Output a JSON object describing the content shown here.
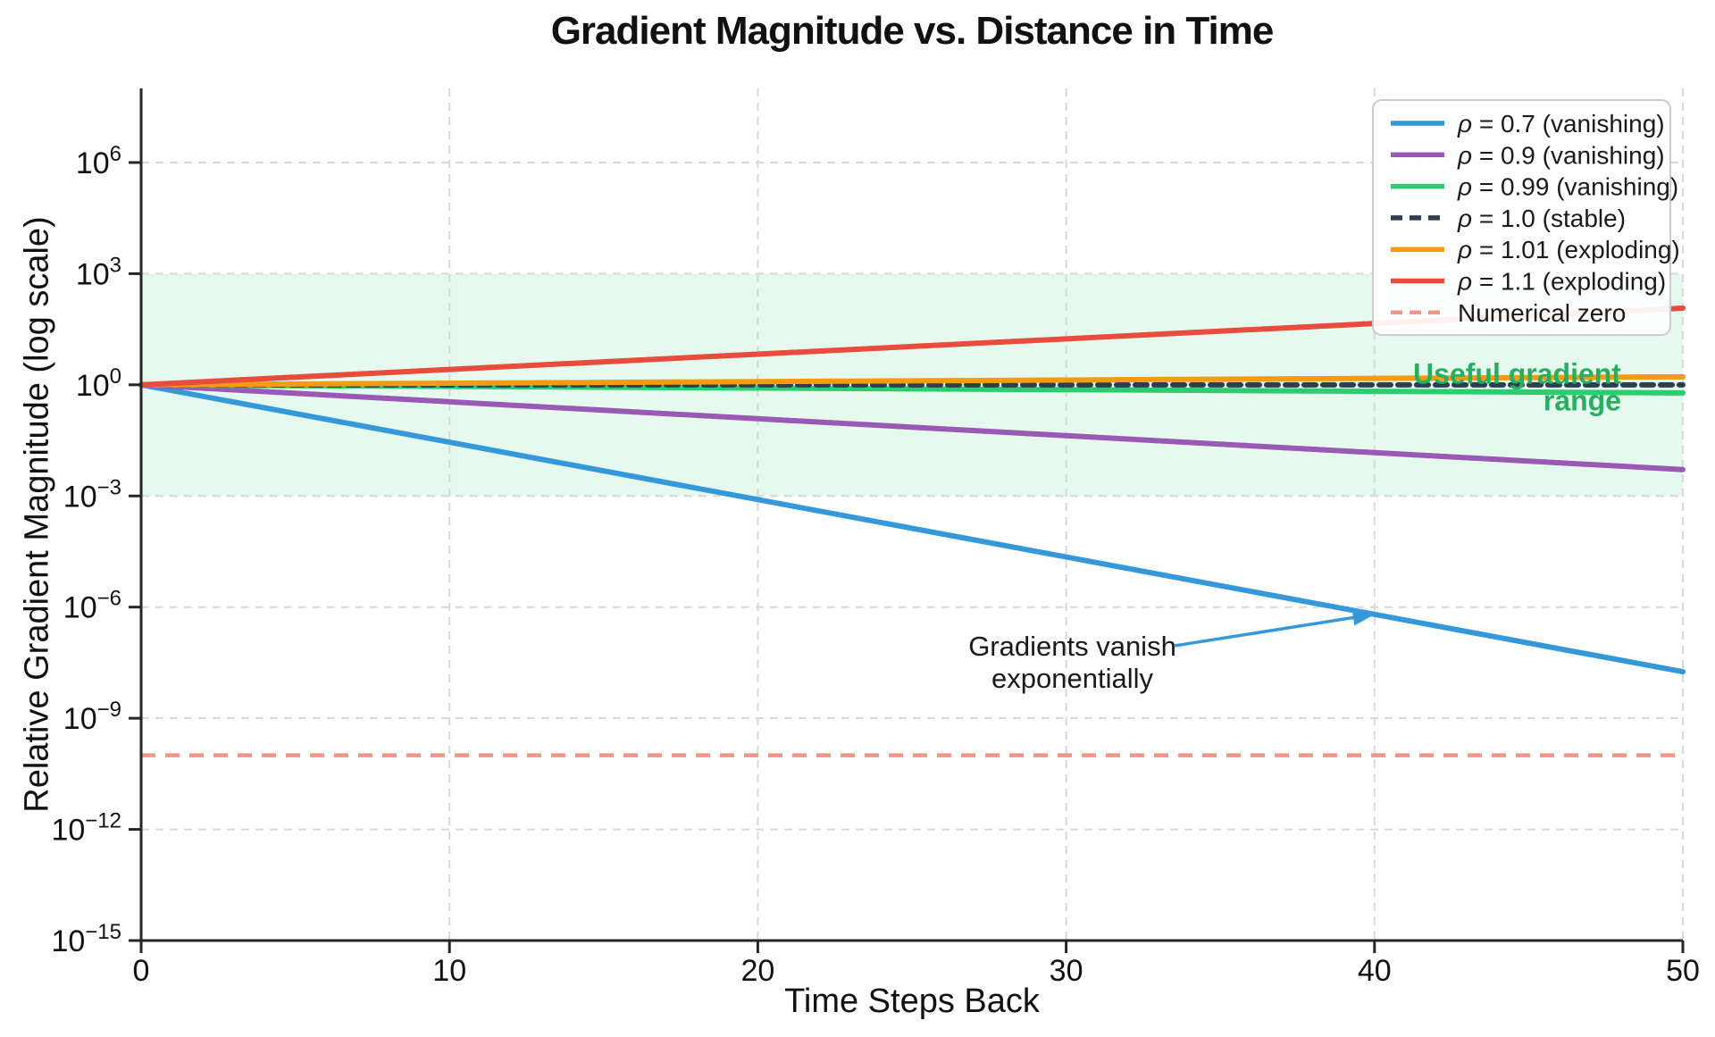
{
  "chart_data": {
    "type": "line",
    "title": "Gradient Magnitude vs. Distance in Time",
    "xlabel": "Time Steps Back",
    "ylabel": "Relative Gradient Magnitude (log scale)",
    "x": [
      0,
      10,
      20,
      30,
      40,
      50
    ],
    "x_ticks": [
      0,
      10,
      20,
      30,
      40,
      50
    ],
    "xlim": [
      0,
      50
    ],
    "y_scale": "log",
    "y_tick_exponents": [
      6,
      3,
      0,
      -3,
      -6,
      -9,
      -12,
      -15
    ],
    "ylim": [
      1e-15,
      100000000.0
    ],
    "grid": true,
    "grid_color": "#d8d8d8",
    "legend_position": "top-right",
    "series": [
      {
        "name": "ρ = 0.7 (vanishing)",
        "rho": 0.7,
        "color": "#3498db",
        "style": "solid",
        "width": 6,
        "values": [
          1,
          0.028248,
          0.00079792,
          2.2539e-05,
          6.3668e-07,
          1.7985e-08
        ]
      },
      {
        "name": "ρ = 0.9 (vanishing)",
        "rho": 0.9,
        "color": "#9b59b6",
        "style": "solid",
        "width": 6,
        "values": [
          1,
          0.34868,
          0.12158,
          0.042391,
          0.014781,
          0.0051538
        ]
      },
      {
        "name": "ρ = 0.99 (vanishing)",
        "rho": 0.99,
        "color": "#2ecc71",
        "style": "solid",
        "width": 6,
        "values": [
          1,
          0.90438,
          0.81791,
          0.7397,
          0.66897,
          0.60501
        ]
      },
      {
        "name": "ρ = 1.0 (stable)",
        "rho": 1.0,
        "color": "#2c3e50",
        "style": "dashed",
        "width": 6,
        "values": [
          1,
          1,
          1,
          1,
          1,
          1
        ]
      },
      {
        "name": "ρ = 1.01 (exploding)",
        "rho": 1.01,
        "color": "#f39c12",
        "style": "solid",
        "width": 6,
        "values": [
          1,
          1.10462,
          1.22019,
          1.34785,
          1.48886,
          1.64463
        ]
      },
      {
        "name": "ρ = 1.1 (exploding)",
        "rho": 1.1,
        "color": "#e74c3c",
        "style": "solid",
        "width": 6,
        "values": [
          1,
          2.59374,
          6.7275,
          17.4494,
          45.2593,
          117.391
        ]
      }
    ],
    "reference_lines": [
      {
        "name": "Numerical zero",
        "y": 1e-10,
        "color": "#f1948a",
        "style": "dashed",
        "width": 4.5
      }
    ],
    "bands": [
      {
        "name": "Useful gradient range",
        "y_from": 0.001,
        "y_to": 1000,
        "fill": "rgba(46, 204, 113, 0.12)",
        "label_lines": [
          "Useful gradient",
          "range"
        ],
        "label_color": "#27ae60",
        "label_anchor_x": 48,
        "label_y": 2.0
      }
    ],
    "annotations": [
      {
        "lines": [
          "Gradients vanish",
          "exponentially"
        ],
        "color": "#1a1a1a",
        "text_x": 30.2,
        "text_y": 9e-08,
        "arrow_from_x": 33.5,
        "arrow_from_y": 9e-08,
        "arrow_to_x": 40,
        "arrow_to_y": 6.4e-07,
        "arrow_color": "#3498db"
      }
    ]
  }
}
